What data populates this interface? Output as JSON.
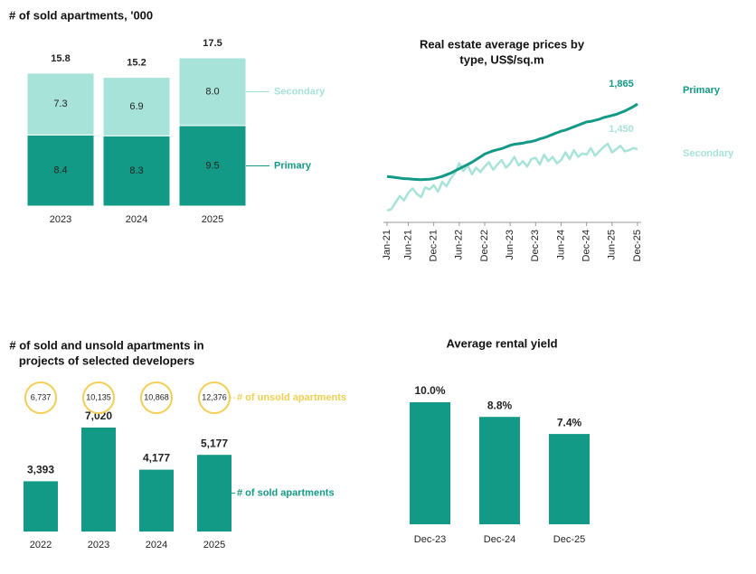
{
  "chart_data": [
    {
      "type": "bar",
      "stacked": true,
      "title": "# of sold apartments, '000",
      "categories": [
        "2023",
        "2024",
        "2025"
      ],
      "totals": [
        15.8,
        15.2,
        17.5
      ],
      "series": [
        {
          "name": "Primary",
          "color": "#139a86",
          "values": [
            8.4,
            8.3,
            9.5
          ]
        },
        {
          "name": "Secondary",
          "color": "#a7e3d8",
          "values": [
            7.3,
            6.9,
            8.0
          ],
          "value_labels": [
            "7.3",
            "6.9",
            "8.0"
          ]
        }
      ]
    },
    {
      "type": "line",
      "title": [
        "Real estate average prices by",
        "type, US$/sq.m"
      ],
      "categories": [
        "Jan-21",
        null,
        null,
        null,
        null,
        "Jun-21",
        null,
        null,
        null,
        null,
        null,
        "Dec-21",
        null,
        null,
        null,
        null,
        null,
        "Jun-22",
        null,
        null,
        null,
        null,
        null,
        "Dec-22",
        null,
        null,
        null,
        null,
        null,
        "Jun-23",
        null,
        null,
        null,
        null,
        null,
        "Dec-23",
        null,
        null,
        null,
        null,
        null,
        "Jun-24",
        null,
        null,
        null,
        null,
        null,
        "Dec-24",
        null,
        null,
        null,
        null,
        null,
        "Jun-25",
        null,
        null,
        null,
        null,
        null,
        "Dec-25"
      ],
      "series": [
        {
          "name": "Primary",
          "color": "#139a86",
          "end_label": "1,865",
          "values": [
            1200,
            1195,
            1190,
            1185,
            1180,
            1178,
            1175,
            1172,
            1170,
            1172,
            1175,
            1180,
            1190,
            1200,
            1215,
            1230,
            1250,
            1270,
            1290,
            1310,
            1330,
            1355,
            1380,
            1405,
            1420,
            1435,
            1445,
            1455,
            1470,
            1485,
            1495,
            1500,
            1505,
            1515,
            1520,
            1530,
            1545,
            1555,
            1570,
            1585,
            1600,
            1615,
            1625,
            1640,
            1655,
            1670,
            1685,
            1700,
            1705,
            1715,
            1725,
            1740,
            1750,
            1760,
            1770,
            1785,
            1800,
            1820,
            1840,
            1865
          ]
        },
        {
          "name": "Secondary",
          "color": "#a7e3d8",
          "end_label": "1,450",
          "values": [
            886,
            900,
            960,
            1020,
            980,
            1050,
            1090,
            1040,
            1010,
            1100,
            1080,
            1120,
            1060,
            1150,
            1110,
            1180,
            1230,
            1320,
            1250,
            1300,
            1220,
            1280,
            1240,
            1290,
            1330,
            1260,
            1310,
            1350,
            1280,
            1320,
            1380,
            1300,
            1340,
            1290,
            1360,
            1370,
            1310,
            1400,
            1340,
            1380,
            1320,
            1350,
            1420,
            1360,
            1440,
            1380,
            1410,
            1400,
            1460,
            1390,
            1430,
            1470,
            1500,
            1420,
            1450,
            1480,
            1430,
            1440,
            1460,
            1450
          ]
        }
      ]
    },
    {
      "type": "bar",
      "title": [
        "# of sold and unsold apartments in",
        "projects of selected developers"
      ],
      "categories": [
        "2022",
        "2023",
        "2024",
        "2025"
      ],
      "series": [
        {
          "name": "# of sold apartments",
          "color": "#139a86",
          "mark": "bar",
          "values": [
            3393,
            7020,
            4177,
            5177
          ],
          "value_labels": [
            "3,393",
            "7,020",
            "4,177",
            "5,177"
          ]
        },
        {
          "name": "# of unsold apartments",
          "color": "#f0cf55",
          "mark": "circle",
          "values": [
            6737,
            10135,
            10868,
            12376
          ],
          "value_labels": [
            "6,737",
            "10,135",
            "10,868",
            "12,376"
          ]
        }
      ]
    },
    {
      "type": "bar",
      "title": "Average rental yield",
      "categories": [
        "Dec-23",
        "Dec-24",
        "Dec-25"
      ],
      "color": "#139a86",
      "values": [
        10.0,
        8.8,
        7.4
      ],
      "value_labels": [
        "10.0%",
        "8.8%",
        "7.4%"
      ]
    }
  ]
}
